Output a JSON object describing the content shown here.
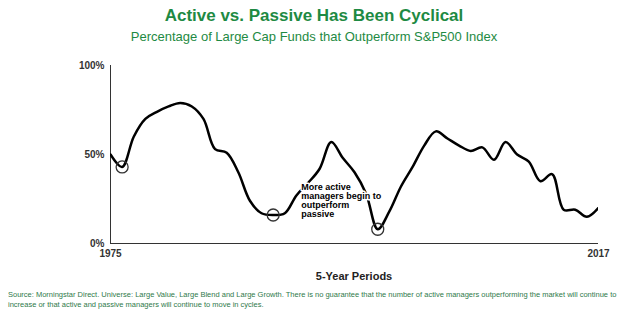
{
  "chart_data": {
    "type": "line",
    "title": "Active vs. Passive Has Been Cyclical",
    "subtitle": "Percentage of Large Cap Funds that Outperform S&P500 Index",
    "x_label": "5-Year Periods",
    "x": [
      1975,
      1976,
      1977,
      1978,
      1979,
      1980,
      1981,
      1982,
      1983,
      1984,
      1985,
      1986,
      1987,
      1988,
      1989,
      1990,
      1991,
      1992,
      1993,
      1994,
      1995,
      1996,
      1997,
      1998,
      1999,
      2000,
      2001,
      2002,
      2003,
      2004,
      2005,
      2006,
      2007,
      2008,
      2009,
      2010,
      2011,
      2012,
      2013,
      2014,
      2015,
      2016,
      2017
    ],
    "values": [
      50,
      43,
      60,
      70,
      74,
      77,
      79,
      77,
      70,
      53,
      51,
      40,
      24,
      17,
      16,
      17,
      27,
      34,
      42,
      57,
      48,
      40,
      28,
      8,
      18,
      32,
      43,
      55,
      63,
      59,
      55,
      52,
      54,
      47,
      57,
      50,
      46,
      35,
      39,
      19,
      19,
      15,
      20
    ],
    "color": "#000000",
    "xlim": [
      1975,
      2017
    ],
    "xticks": [
      1975,
      2017
    ],
    "ylim": [
      0,
      100
    ],
    "yticks": [
      {
        "value": 0,
        "label": "0%"
      },
      {
        "value": 50,
        "label": "50%"
      },
      {
        "value": 100,
        "label": "100%"
      }
    ],
    "grid": false,
    "highlight_x": [
      1976,
      1989,
      1998
    ],
    "annotation": "More active managers begin to outperform passive",
    "source": "Source: Morningstar Direct. Universe: Large Value, Large Blend and Large Growth. There is no guarantee that the number of active managers outperforming the market will continue to increase or that active and passive managers will continue to move in cycles."
  }
}
